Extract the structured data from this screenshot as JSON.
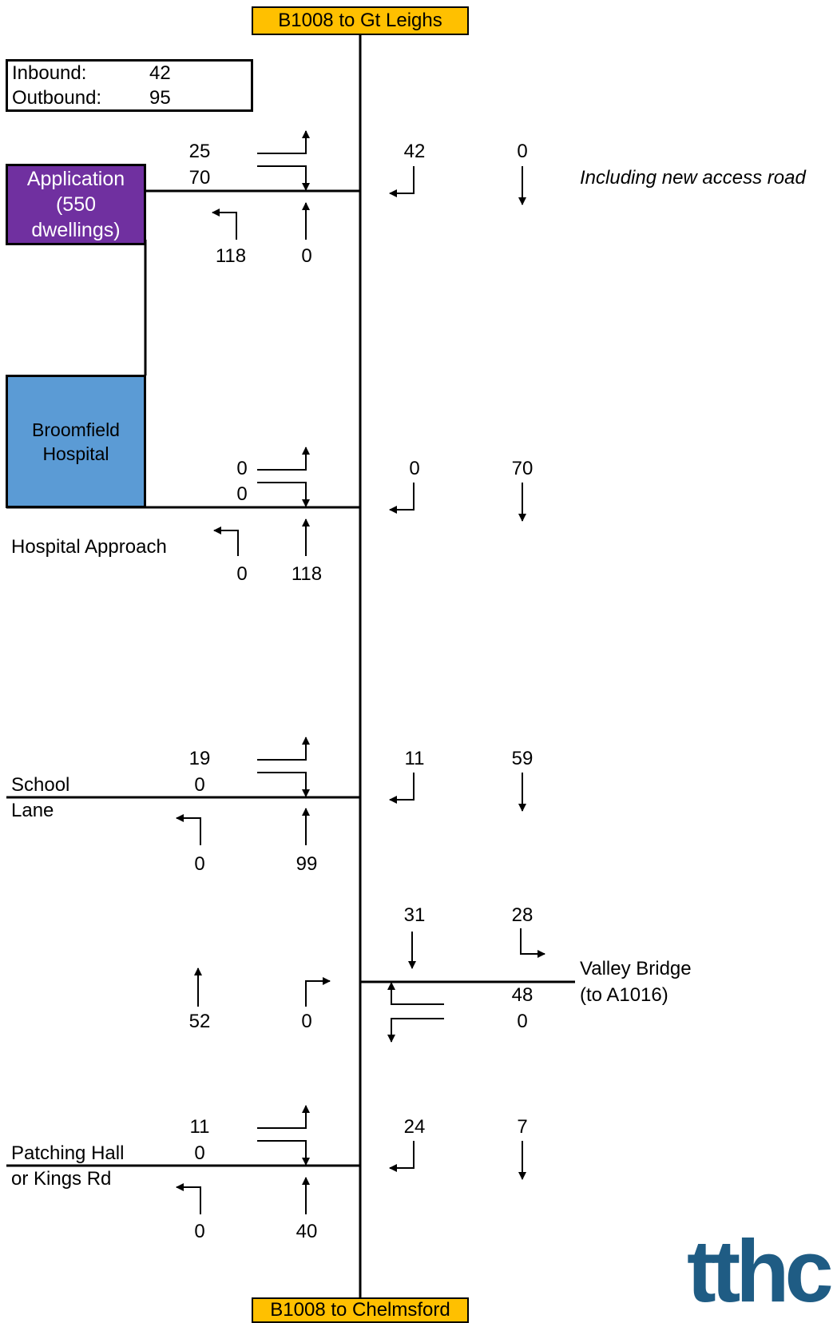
{
  "roads": {
    "north": "B1008 to Gt Leighs",
    "south": "B1008 to Chelmsford"
  },
  "totals": {
    "inbound_label": "Inbound:",
    "inbound_value": "42",
    "outbound_label": "Outbound:",
    "outbound_value": "95"
  },
  "sites": {
    "application": [
      "Application",
      "(550",
      "dwellings)"
    ],
    "hospital": [
      "Broomfield",
      "Hospital"
    ]
  },
  "note": "Including new access road",
  "junctions": {
    "application": {
      "w_right": "25",
      "w_left": "70",
      "n_right": "42",
      "n_ahead": "0",
      "s_left": "118",
      "s_ahead": "0"
    },
    "hospital_approach": {
      "name": "Hospital Approach",
      "w_right": "0",
      "w_left": "0",
      "n_right": "0",
      "n_ahead": "70",
      "s_left": "0",
      "s_ahead": "118"
    },
    "school_lane": {
      "name1": "School",
      "name2": "Lane",
      "w_right": "19",
      "w_left": "0",
      "n_right": "11",
      "n_ahead": "59",
      "s_left": "0",
      "s_ahead": "99"
    },
    "valley_bridge": {
      "name1": "Valley Bridge",
      "name2": "(to A1016)",
      "n_ahead": "31",
      "n_left": "28",
      "s_ahead": "52",
      "s_right": "0",
      "e_left": "48",
      "e_right": "0"
    },
    "patching_hall": {
      "name1": "Patching Hall",
      "name2": "or Kings Rd",
      "w_right": "11",
      "w_left": "0",
      "n_right": "24",
      "n_ahead": "7",
      "s_left": "0",
      "s_ahead": "40"
    }
  },
  "logo": "tthc"
}
